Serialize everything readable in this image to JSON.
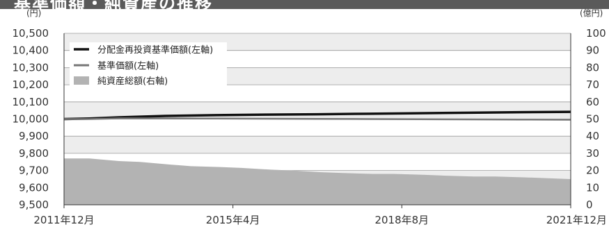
{
  "header": {
    "title": "基準価額・純資産の推移"
  },
  "chart_data": {
    "type": "line",
    "left_axis": {
      "unit": "(円)",
      "min": 9500,
      "max": 10500,
      "step": 100,
      "tick_labels": [
        "10,500",
        "10,400",
        "10,300",
        "10,200",
        "10,100",
        "10,000",
        "9,900",
        "9,800",
        "9,700",
        "9,600",
        "9,500"
      ]
    },
    "right_axis": {
      "unit": "(億円)",
      "min": 0,
      "max": 100,
      "step": 10,
      "tick_labels": [
        "100",
        "90",
        "80",
        "70",
        "60",
        "50",
        "40",
        "30",
        "20",
        "10",
        "0"
      ]
    },
    "x_axis": {
      "start": "2011-12",
      "end": "2021-12",
      "tick_labels": [
        "2011年12月",
        "2015年4月",
        "2018年8月",
        "2021年12月"
      ],
      "tick_dates": [
        "2011-12",
        "2015-04",
        "2018-08",
        "2021-12"
      ]
    },
    "grid": true,
    "legend_placement": "top-left",
    "series": [
      {
        "name": "分配金再投資基準価額(左軸)",
        "type": "line",
        "axis": "left",
        "color": "#111111",
        "points": [
          [
            "2011-12",
            10000
          ],
          [
            "2012-06",
            10003
          ],
          [
            "2013-01",
            10010
          ],
          [
            "2013-12",
            10018
          ],
          [
            "2014-12",
            10023
          ],
          [
            "2015-12",
            10026
          ],
          [
            "2016-12",
            10028
          ],
          [
            "2017-12",
            10031
          ],
          [
            "2018-12",
            10034
          ],
          [
            "2019-12",
            10037
          ],
          [
            "2020-12",
            10040
          ],
          [
            "2021-12",
            10042
          ]
        ]
      },
      {
        "name": "基準価額(左軸)",
        "type": "line",
        "axis": "left",
        "color": "#777777",
        "points": [
          [
            "2011-12",
            10000
          ],
          [
            "2012-06",
            10000
          ],
          [
            "2013-01",
            10004
          ],
          [
            "2013-12",
            10004
          ],
          [
            "2014-12",
            10003
          ],
          [
            "2015-12",
            10002
          ],
          [
            "2016-12",
            10001
          ],
          [
            "2017-12",
            10000
          ],
          [
            "2018-12",
            9999
          ],
          [
            "2019-12",
            9998
          ],
          [
            "2020-12",
            9997
          ],
          [
            "2021-12",
            9996
          ]
        ]
      },
      {
        "name": "純資産総額(右軸)",
        "type": "area",
        "axis": "right",
        "color": "#b3b3b3",
        "points": [
          [
            "2011-12",
            27
          ],
          [
            "2012-06",
            27
          ],
          [
            "2013-01",
            25.5
          ],
          [
            "2013-06",
            25
          ],
          [
            "2014-01",
            23.5
          ],
          [
            "2014-06",
            22.5
          ],
          [
            "2015-01",
            22
          ],
          [
            "2015-06",
            21.5
          ],
          [
            "2016-01",
            20.5
          ],
          [
            "2016-06",
            20
          ],
          [
            "2017-01",
            19
          ],
          [
            "2017-06",
            18.5
          ],
          [
            "2018-01",
            18
          ],
          [
            "2018-06",
            18
          ],
          [
            "2019-01",
            17.5
          ],
          [
            "2019-06",
            17
          ],
          [
            "2020-01",
            16.5
          ],
          [
            "2020-06",
            16.5
          ],
          [
            "2021-01",
            16
          ],
          [
            "2021-12",
            15
          ]
        ]
      }
    ]
  }
}
